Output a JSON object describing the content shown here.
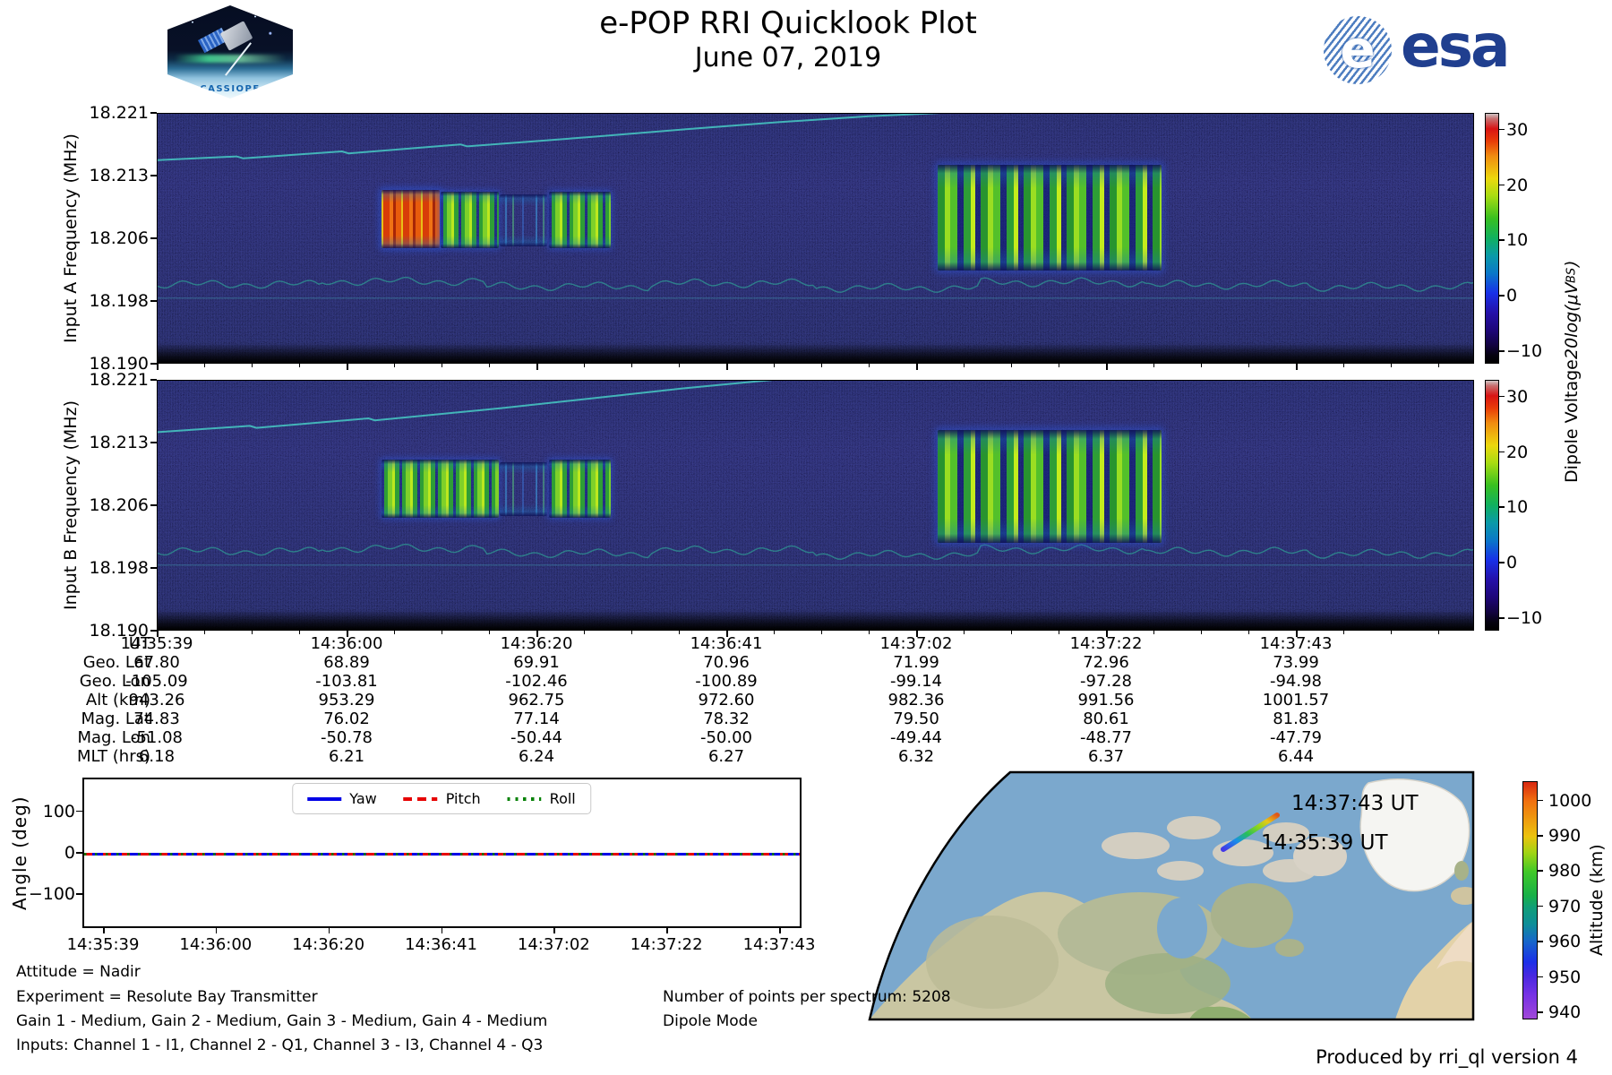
{
  "header": {
    "title": "e-POP RRI Quicklook Plot",
    "date": "June 07, 2019",
    "cassiope_label": "CASSIOPE",
    "esa_wordmark": "esa"
  },
  "colorbar_label": {
    "prefix": "Dipole Voltage ",
    "math": "20log(μV",
    "sub": "BS",
    "suffix": ")"
  },
  "chart_data": [
    {
      "id": "input_a_spectrogram",
      "type": "heatmap",
      "ylabel": "Input A Frequency (MHz)",
      "yticks": [
        "18.221",
        "18.213",
        "18.206",
        "18.198",
        "18.190"
      ],
      "x_time_ticks": [
        "14:35:39",
        "14:36:00",
        "14:36:20",
        "14:36:41",
        "14:37:02",
        "14:37:22",
        "14:37:43"
      ],
      "colorbar": {
        "ticks": [
          30,
          20,
          10,
          0,
          -10
        ],
        "tick_labels": [
          "30",
          "20",
          "10",
          "0",
          "−10"
        ],
        "vmin": -12.2,
        "vmax": 33
      },
      "features": {
        "bursts": [
          {
            "x0": 0.17,
            "x1": 0.214,
            "y0": 0.305,
            "y1": 0.535,
            "style": "hot"
          },
          {
            "x0": 0.215,
            "x1": 0.259,
            "y0": 0.31,
            "y1": 0.535,
            "style": "green"
          },
          {
            "x0": 0.26,
            "x1": 0.296,
            "y0": 0.32,
            "y1": 0.53,
            "style": "sparse"
          },
          {
            "x0": 0.297,
            "x1": 0.344,
            "y0": 0.31,
            "y1": 0.535,
            "style": "green"
          },
          {
            "x0": 0.592,
            "x1": 0.762,
            "y0": 0.205,
            "y1": 0.625,
            "style": "green2"
          }
        ],
        "ascending_trace": [
          [
            0,
            0.185
          ],
          [
            0.06,
            0.17
          ],
          [
            0.065,
            0.178
          ],
          [
            0.14,
            0.15
          ],
          [
            0.145,
            0.158
          ],
          [
            0.23,
            0.122
          ],
          [
            0.235,
            0.13
          ],
          [
            0.33,
            0.092
          ],
          [
            0.4,
            0.062
          ],
          [
            0.47,
            0.034
          ],
          [
            0.54,
            0.01
          ],
          [
            0.58,
            0.0
          ],
          [
            0.62,
            -0.01
          ]
        ],
        "wiggle_y": 0.68,
        "flat_y": 0.735
      }
    },
    {
      "id": "input_b_spectrogram",
      "type": "heatmap",
      "ylabel": "Input B Frequency (MHz)",
      "yticks": [
        "18.221",
        "18.213",
        "18.206",
        "18.198",
        "18.190"
      ],
      "x_time_ticks": [
        "14:35:39",
        "14:36:00",
        "14:36:20",
        "14:36:41",
        "14:37:02",
        "14:37:22",
        "14:37:43"
      ],
      "colorbar": {
        "ticks": [
          30,
          20,
          10,
          0,
          -10
        ],
        "tick_labels": [
          "30",
          "20",
          "10",
          "0",
          "−10"
        ],
        "vmin": -12.2,
        "vmax": 33
      },
      "features": {
        "bursts": [
          {
            "x0": 0.17,
            "x1": 0.259,
            "y0": 0.315,
            "y1": 0.545,
            "style": "green"
          },
          {
            "x0": 0.26,
            "x1": 0.296,
            "y0": 0.325,
            "y1": 0.54,
            "style": "sparse"
          },
          {
            "x0": 0.297,
            "x1": 0.344,
            "y0": 0.315,
            "y1": 0.545,
            "style": "green"
          },
          {
            "x0": 0.592,
            "x1": 0.762,
            "y0": 0.195,
            "y1": 0.645,
            "style": "green2"
          }
        ],
        "ascending_trace": [
          [
            0,
            0.205
          ],
          [
            0.07,
            0.18
          ],
          [
            0.075,
            0.188
          ],
          [
            0.16,
            0.15
          ],
          [
            0.165,
            0.158
          ],
          [
            0.26,
            0.11
          ],
          [
            0.33,
            0.07
          ],
          [
            0.4,
            0.03
          ],
          [
            0.45,
            0.005
          ],
          [
            0.48,
            -0.01
          ]
        ],
        "wiggle_y": 0.68,
        "flat_y": 0.735
      }
    },
    {
      "id": "ephemeris_table",
      "type": "table",
      "row_labels": [
        "UT",
        "Geo. Lat",
        "Geo. Lon",
        "Alt (km)",
        "Mag. Lat",
        "Mag. Lon",
        "MLT (hrs)"
      ],
      "rows": [
        [
          "14:35:39",
          "14:36:00",
          "14:36:20",
          "14:36:41",
          "14:37:02",
          "14:37:22",
          "14:37:43"
        ],
        [
          "67.80",
          "68.89",
          "69.91",
          "70.96",
          "71.99",
          "72.96",
          "73.99"
        ],
        [
          "-105.09",
          "-103.81",
          "-102.46",
          "-100.89",
          "-99.14",
          "-97.28",
          "-94.98"
        ],
        [
          "943.26",
          "953.29",
          "962.75",
          "972.60",
          "982.36",
          "991.56",
          "1001.57"
        ],
        [
          "74.83",
          "76.02",
          "77.14",
          "78.32",
          "79.50",
          "80.61",
          "81.83"
        ],
        [
          "-51.08",
          "-50.78",
          "-50.44",
          "-50.00",
          "-49.44",
          "-48.77",
          "-47.79"
        ],
        [
          "6.18",
          "6.21",
          "6.24",
          "6.27",
          "6.32",
          "6.37",
          "6.44"
        ]
      ]
    },
    {
      "id": "attitude_angles",
      "type": "line",
      "ylabel": "Angle (deg)",
      "ylim": [
        -180,
        180
      ],
      "yticks": [
        "100",
        "0",
        "−100"
      ],
      "ytick_values": [
        100,
        0,
        -100
      ],
      "xticks": [
        "14:35:39",
        "14:36:00",
        "14:36:20",
        "14:36:41",
        "14:37:02",
        "14:37:22",
        "14:37:43"
      ],
      "legend_position": "top center",
      "series": [
        {
          "name": "Yaw",
          "color": "#0000e6",
          "dash": "solid",
          "values": [
            0,
            0,
            0,
            0,
            0,
            0,
            0
          ]
        },
        {
          "name": "Pitch",
          "color": "#e60000",
          "dash": "dashed",
          "values": [
            0,
            0,
            0,
            0,
            0,
            0,
            0
          ]
        },
        {
          "name": "Roll",
          "color": "#088208",
          "dash": "dotted",
          "values": [
            0,
            0,
            0,
            0,
            0,
            0,
            0
          ]
        }
      ]
    },
    {
      "id": "ground_track_map",
      "type": "map",
      "annotations": [
        "14:37:43 UT",
        "14:35:39 UT"
      ],
      "colorbar": {
        "label": "Altitude (km)",
        "ticks": [
          1000,
          990,
          980,
          970,
          960,
          950,
          940
        ],
        "vmin": 938,
        "vmax": 1005.5
      },
      "track": {
        "start_time": "14:35:39",
        "end_time": "14:37:43",
        "start_alt_km": 943.26,
        "end_alt_km": 1001.57
      }
    }
  ],
  "notes": {
    "left": [
      "Attitude = Nadir",
      "Experiment = Resolute Bay Transmitter",
      "Gain 1 - Medium, Gain 2 - Medium, Gain 3 - Medium, Gain 4 - Medium",
      "Inputs: Channel 1 - I1, Channel 2 - Q1, Channel 3 - I3, Channel 4 - Q3"
    ],
    "right": [
      "Number of points per spectrum: 5208",
      "Dipole Mode"
    ]
  },
  "credit": "Produced by rri_ql version 4"
}
